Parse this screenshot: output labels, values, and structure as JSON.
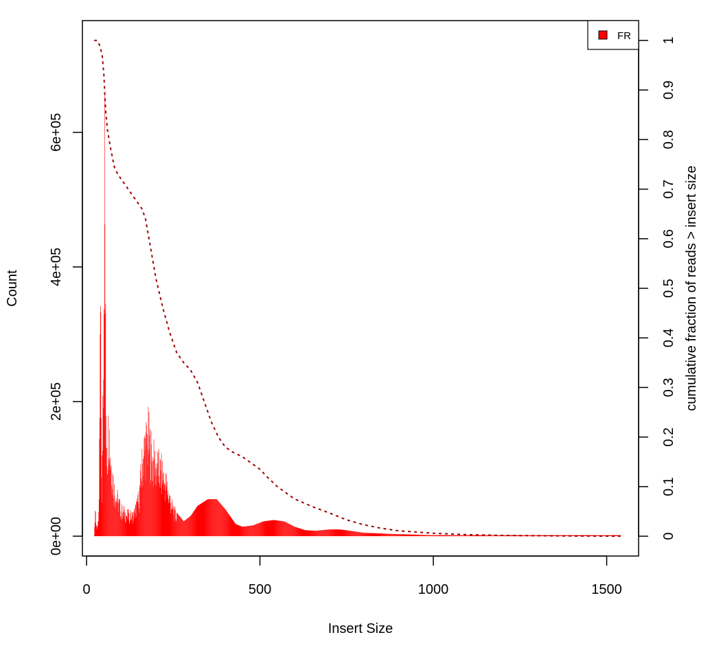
{
  "chart_data": {
    "type": "histogram",
    "title": "",
    "xlabel": "Insert Size",
    "ylabel": "Count",
    "y2label": "cumulative fraction of reads > insert size",
    "xlim": [
      -12,
      1592
    ],
    "ylim": [
      -29500,
      766000
    ],
    "y2lim": [
      -0.04,
      1.04
    ],
    "x_ticks": [
      0,
      500,
      1000,
      1500
    ],
    "x_tick_labels": [
      "0",
      "500",
      "1000",
      "1500"
    ],
    "y_ticks": [
      0,
      200000,
      400000,
      600000
    ],
    "y_tick_labels": [
      "0e+00",
      "2e+05",
      "4e+05",
      "6e+05"
    ],
    "y2_ticks": [
      0,
      0.1,
      0.2,
      0.3,
      0.4,
      0.5,
      0.6,
      0.7,
      0.8,
      0.9,
      1
    ],
    "y2_tick_labels": [
      "0",
      "0.1",
      "0.2",
      "0.3",
      "0.4",
      "0.5",
      "0.6",
      "0.7",
      "0.8",
      "0.9",
      "1"
    ],
    "grid": false,
    "legend": {
      "position": "top-right",
      "entries": [
        {
          "label": "FR",
          "color": "#ff0000"
        }
      ]
    },
    "series": [
      {
        "name": "FR",
        "kind": "histogram",
        "color": "#ff0000",
        "x_range": [
          22,
          1540
        ],
        "profile": [
          [
            22,
            0
          ],
          [
            25,
            60000
          ],
          [
            30,
            10000
          ],
          [
            36,
            55000
          ],
          [
            40,
            440000
          ],
          [
            44,
            60000
          ],
          [
            48,
            360000
          ],
          [
            52,
            735000
          ],
          [
            56,
            250000
          ],
          [
            60,
            170000
          ],
          [
            64,
            230000
          ],
          [
            70,
            150000
          ],
          [
            80,
            90000
          ],
          [
            90,
            70000
          ],
          [
            100,
            50000
          ],
          [
            110,
            45000
          ],
          [
            120,
            40000
          ],
          [
            135,
            40000
          ],
          [
            150,
            70000
          ],
          [
            165,
            170000
          ],
          [
            178,
            195000
          ],
          [
            190,
            150000
          ],
          [
            200,
            140000
          ],
          [
            215,
            125000
          ],
          [
            230,
            100000
          ],
          [
            245,
            60000
          ],
          [
            260,
            35000
          ],
          [
            280,
            22000
          ],
          [
            300,
            30000
          ],
          [
            320,
            45000
          ],
          [
            350,
            55000
          ],
          [
            375,
            55000
          ],
          [
            400,
            40000
          ],
          [
            430,
            18000
          ],
          [
            450,
            14000
          ],
          [
            480,
            16000
          ],
          [
            510,
            22000
          ],
          [
            540,
            24000
          ],
          [
            570,
            22000
          ],
          [
            600,
            14000
          ],
          [
            630,
            9000
          ],
          [
            660,
            8000
          ],
          [
            700,
            10000
          ],
          [
            730,
            10000
          ],
          [
            760,
            8000
          ],
          [
            800,
            5000
          ],
          [
            850,
            4000
          ],
          [
            900,
            3000
          ],
          [
            1000,
            1500
          ],
          [
            1100,
            800
          ],
          [
            1200,
            400
          ],
          [
            1300,
            200
          ],
          [
            1400,
            100
          ],
          [
            1540,
            0
          ]
        ]
      },
      {
        "name": "FR",
        "kind": "cumulative",
        "axis": "right",
        "color": "#990000",
        "x": [
          22,
          30,
          38,
          45,
          50,
          55,
          60,
          70,
          80,
          90,
          100,
          120,
          140,
          160,
          170,
          180,
          200,
          220,
          240,
          260,
          280,
          300,
          320,
          340,
          360,
          380,
          400,
          420,
          450,
          480,
          500,
          520,
          550,
          580,
          600,
          650,
          700,
          750,
          800,
          850,
          900,
          1000,
          1100,
          1200,
          1300,
          1400,
          1540
        ],
        "y": [
          1.0,
          1.0,
          0.99,
          0.97,
          0.93,
          0.86,
          0.82,
          0.78,
          0.745,
          0.73,
          0.72,
          0.7,
          0.68,
          0.66,
          0.64,
          0.6,
          0.52,
          0.46,
          0.41,
          0.37,
          0.35,
          0.335,
          0.31,
          0.27,
          0.23,
          0.2,
          0.18,
          0.17,
          0.16,
          0.145,
          0.135,
          0.12,
          0.1,
          0.085,
          0.075,
          0.06,
          0.047,
          0.033,
          0.023,
          0.016,
          0.011,
          0.006,
          0.003,
          0.0015,
          0.001,
          0.0005,
          0
        ]
      }
    ]
  }
}
